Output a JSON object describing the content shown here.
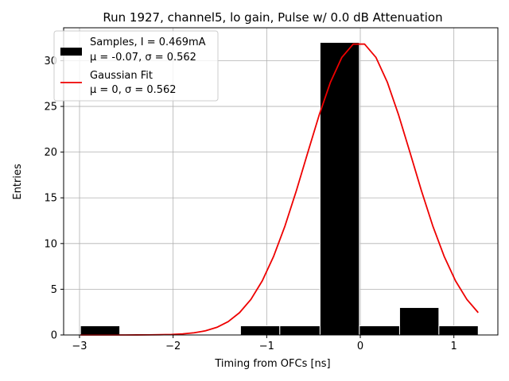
{
  "chart_data": {
    "type": "bar",
    "title": "Run 1927, channel5, lo gain, Pulse w/ 0.0 dB Attenuation",
    "xlabel": "Timing from OFCs [ns]",
    "ylabel": "Entries",
    "xlim": [
      -3.17,
      1.47
    ],
    "ylim": [
      0,
      33.6
    ],
    "xticks": [
      -3,
      -2,
      -1,
      0,
      1
    ],
    "xtick_labels": [
      "−3",
      "−2",
      "−1",
      "0",
      "1"
    ],
    "yticks": [
      0,
      5,
      10,
      15,
      20,
      25,
      30
    ],
    "ytick_labels": [
      "0",
      "5",
      "10",
      "15",
      "20",
      "25",
      "30"
    ],
    "grid": true,
    "legend_position": "top-left",
    "histogram": {
      "name": "Samples, I = 0.469mA",
      "stats": "μ = -0.07, σ = 0.562",
      "color": "#000000",
      "bins": [
        {
          "x0": -2.99,
          "x1": -2.57,
          "count": 1
        },
        {
          "x0": -1.28,
          "x1": -0.86,
          "count": 1
        },
        {
          "x0": -0.86,
          "x1": -0.43,
          "count": 1
        },
        {
          "x0": -0.43,
          "x1": -0.01,
          "count": 32
        },
        {
          "x0": -0.01,
          "x1": 0.42,
          "count": 1
        },
        {
          "x0": 0.42,
          "x1": 0.84,
          "count": 3
        },
        {
          "x0": 0.84,
          "x1": 1.26,
          "count": 1
        }
      ]
    },
    "fit": {
      "name": "Gaussian Fit",
      "stats": "μ = 0, σ = 0.562",
      "color": "#ee0000",
      "amplitude": 32,
      "mu": -0.015,
      "sigma": 0.562,
      "x_start": -2.99,
      "x_end": 1.26,
      "points": 36
    }
  }
}
